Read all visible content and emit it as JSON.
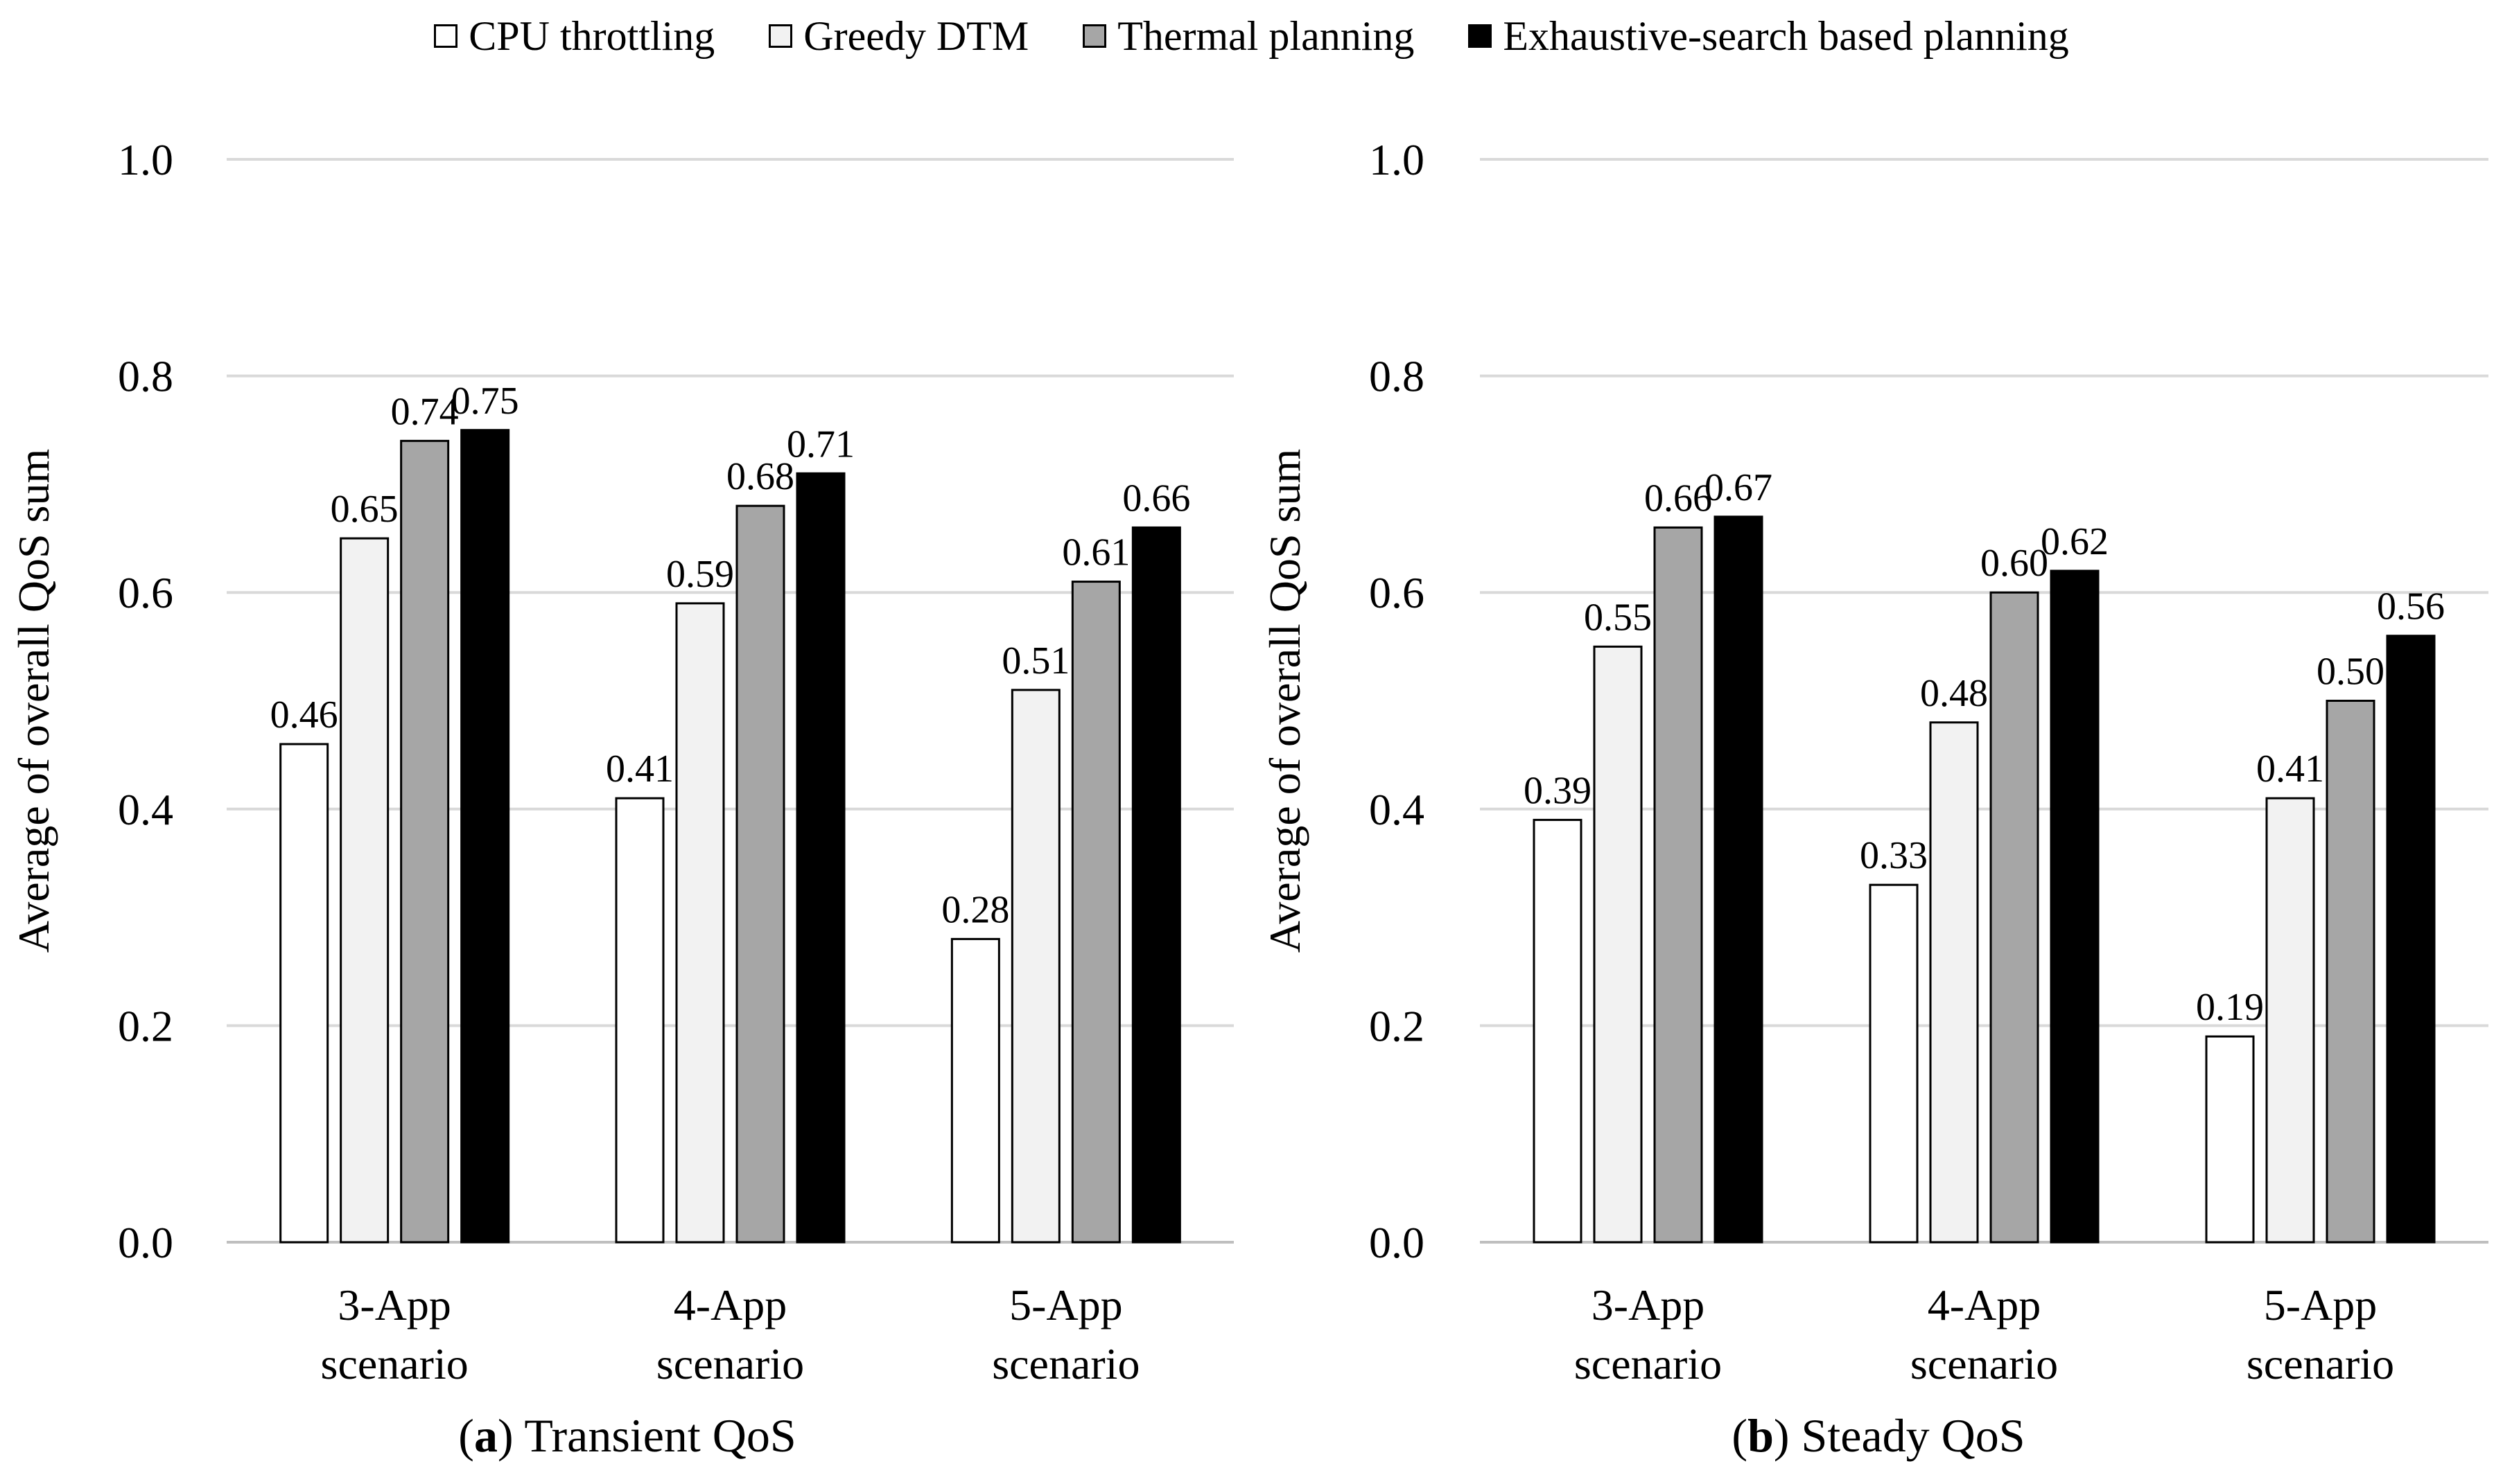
{
  "legend": {
    "items": [
      {
        "label": "CPU throttling",
        "color": "#ffffff"
      },
      {
        "label": "Greedy DTM",
        "color": "#f2f2f2"
      },
      {
        "label": "Thermal planning",
        "color": "#a6a6a6"
      },
      {
        "label": "Exhaustive-search based planning",
        "color": "#000000"
      }
    ]
  },
  "chart_data": [
    {
      "type": "bar",
      "caption_prefix": "(",
      "caption_letter": "a",
      "caption_rest": ") Transient QoS",
      "ylabel": "Average of overall QoS sum",
      "ylim": [
        0,
        1.0
      ],
      "yticks": [
        "0.0",
        "0.2",
        "0.4",
        "0.6",
        "0.8",
        "1.0"
      ],
      "categories": [
        [
          "3-App",
          "scenario"
        ],
        [
          "4-App",
          "scenario"
        ],
        [
          "5-App",
          "scenario"
        ]
      ],
      "series": [
        {
          "name": "CPU throttling",
          "values": [
            0.46,
            0.41,
            0.28
          ],
          "labels": [
            "0.46",
            "0.41",
            "0.28"
          ]
        },
        {
          "name": "Greedy DTM",
          "values": [
            0.65,
            0.59,
            0.51
          ],
          "labels": [
            "0.65",
            "0.59",
            "0.51"
          ]
        },
        {
          "name": "Thermal planning",
          "values": [
            0.74,
            0.68,
            0.61
          ],
          "labels": [
            "0.74",
            "0.68",
            "0.61"
          ]
        },
        {
          "name": "Exhaustive-search based planning",
          "values": [
            0.75,
            0.71,
            0.66
          ],
          "labels": [
            "0.75",
            "0.71",
            "0.66"
          ]
        }
      ]
    },
    {
      "type": "bar",
      "caption_prefix": "(",
      "caption_letter": "b",
      "caption_rest": ") Steady QoS",
      "ylabel": "Average of overall QoS sum",
      "ylim": [
        0,
        1.0
      ],
      "yticks": [
        "0.0",
        "0.2",
        "0.4",
        "0.6",
        "0.8",
        "1.0"
      ],
      "categories": [
        [
          "3-App",
          "scenario"
        ],
        [
          "4-App",
          "scenario"
        ],
        [
          "5-App",
          "scenario"
        ]
      ],
      "series": [
        {
          "name": "CPU throttling",
          "values": [
            0.39,
            0.33,
            0.19
          ],
          "labels": [
            "0.39",
            "0.33",
            "0.19"
          ]
        },
        {
          "name": "Greedy DTM",
          "values": [
            0.55,
            0.48,
            0.41
          ],
          "labels": [
            "0.55",
            "0.48",
            "0.41"
          ]
        },
        {
          "name": "Thermal planning",
          "values": [
            0.66,
            0.6,
            0.5
          ],
          "labels": [
            "0.66",
            "0.60",
            "0.50"
          ]
        },
        {
          "name": "Exhaustive-search based planning",
          "values": [
            0.67,
            0.62,
            0.56
          ],
          "labels": [
            "0.67",
            "0.62",
            "0.56"
          ]
        }
      ]
    }
  ]
}
